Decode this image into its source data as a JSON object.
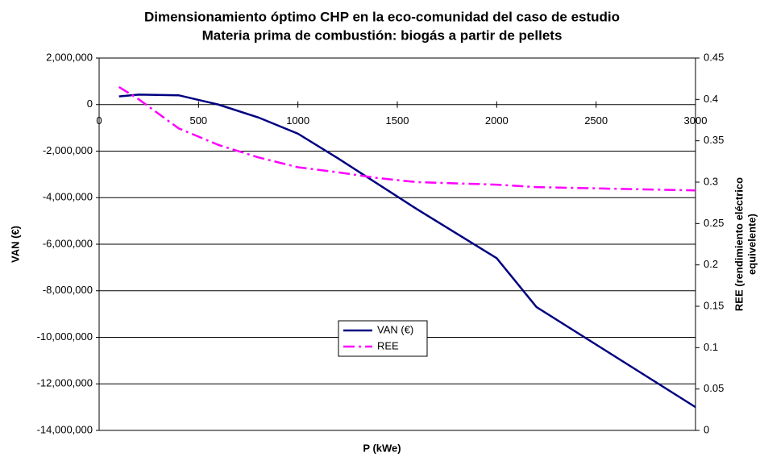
{
  "chart_data": {
    "type": "line",
    "title": [
      "Dimensionamiento óptimo CHP en la eco-comunidad del caso de estudio",
      "Materia prima de combustión: biogás a partir de pellets"
    ],
    "x_label": "P (kWe)",
    "y_label": "VAN (€)",
    "y2_label": [
      "REE (rendimiento eléctrico",
      "equivelente)"
    ],
    "x": [
      100,
      200,
      400,
      600,
      800,
      1000,
      1200,
      1400,
      1600,
      2000,
      2200,
      3000
    ],
    "series": [
      {
        "name": "VAN (€)",
        "color": "#000080",
        "axis": "y",
        "dash": "solid",
        "values": [
          350000,
          430000,
          400000,
          0,
          -550000,
          -1250000,
          -2300000,
          -3400000,
          -4500000,
          -6600000,
          -8700000,
          -13000000
        ]
      },
      {
        "name": "REE",
        "color": "#ff00ff",
        "axis": "y2",
        "dash": "dashdot",
        "values": [
          0.415,
          0.4,
          0.365,
          0.345,
          0.33,
          0.318,
          0.312,
          0.305,
          0.3,
          0.297,
          0.294,
          0.29
        ]
      }
    ],
    "xlim": [
      0,
      3000
    ],
    "xticks": [
      0,
      500,
      1000,
      1500,
      2000,
      2500,
      3000
    ],
    "ylim": [
      -14000000,
      2000000
    ],
    "yticks": [
      {
        "value": 2000000,
        "label": "2,000,000"
      },
      {
        "value": 0,
        "label": "0"
      },
      {
        "value": -2000000,
        "label": "-2,000,000"
      },
      {
        "value": -4000000,
        "label": "-4,000,000"
      },
      {
        "value": -6000000,
        "label": "-6,000,000"
      },
      {
        "value": -8000000,
        "label": "-8,000,000"
      },
      {
        "value": -10000000,
        "label": "-10,000,000"
      },
      {
        "value": -12000000,
        "label": "-12,000,000"
      },
      {
        "value": -14000000,
        "label": "-14,000,000"
      }
    ],
    "y2lim": [
      0,
      0.45
    ],
    "y2ticks": [
      0,
      0.05,
      0.1,
      0.15,
      0.2,
      0.25,
      0.3,
      0.35,
      0.4,
      0.45
    ],
    "grid": true
  }
}
